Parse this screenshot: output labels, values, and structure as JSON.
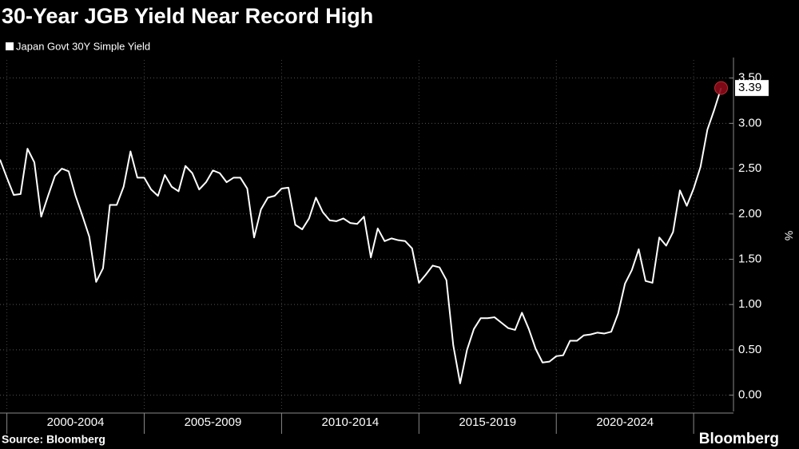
{
  "chart_data": {
    "type": "line",
    "title": "30-Year JGB Yield Near Record High",
    "y_axis_label": "%",
    "source": "Source: Bloomberg",
    "brand": "Bloomberg",
    "x": [
      1999.75,
      2000,
      2000.25,
      2000.5,
      2000.75,
      2001,
      2001.25,
      2001.5,
      2001.75,
      2002,
      2002.25,
      2002.5,
      2002.75,
      2003,
      2003.25,
      2003.5,
      2003.75,
      2004,
      2004.25,
      2004.5,
      2004.75,
      2005,
      2005.25,
      2005.5,
      2005.75,
      2006,
      2006.25,
      2006.5,
      2006.75,
      2007,
      2007.25,
      2007.5,
      2007.75,
      2008,
      2008.25,
      2008.5,
      2008.75,
      2009,
      2009.25,
      2009.5,
      2009.75,
      2010,
      2010.25,
      2010.5,
      2010.75,
      2011,
      2011.25,
      2011.5,
      2011.75,
      2012,
      2012.25,
      2012.5,
      2012.75,
      2013,
      2013.25,
      2013.5,
      2013.75,
      2014,
      2014.25,
      2014.5,
      2014.75,
      2015,
      2015.25,
      2015.5,
      2015.75,
      2016,
      2016.25,
      2016.5,
      2016.75,
      2017,
      2017.25,
      2017.5,
      2017.75,
      2018,
      2018.25,
      2018.5,
      2018.75,
      2019,
      2019.25,
      2019.5,
      2019.75,
      2020,
      2020.25,
      2020.5,
      2020.75,
      2021,
      2021.25,
      2021.5,
      2021.75,
      2022,
      2022.25,
      2022.5,
      2022.75,
      2023,
      2023.25,
      2023.5,
      2023.75,
      2024,
      2024.25,
      2024.5,
      2024.75,
      2025,
      2025.25,
      2025.5,
      2025.75,
      2026
    ],
    "series": [
      {
        "name": "Japan Govt 30Y Simple Yield",
        "color": "#ffffff",
        "values": [
          2.6,
          2.4,
          2.21,
          2.22,
          2.72,
          2.57,
          1.97,
          2.2,
          2.42,
          2.5,
          2.47,
          2.2,
          1.98,
          1.75,
          1.25,
          1.4,
          2.1,
          2.1,
          2.3,
          2.69,
          2.4,
          2.4,
          2.27,
          2.2,
          2.43,
          2.3,
          2.25,
          2.53,
          2.45,
          2.27,
          2.35,
          2.48,
          2.45,
          2.35,
          2.4,
          2.4,
          2.28,
          1.74,
          2.05,
          2.18,
          2.2,
          2.28,
          2.29,
          1.88,
          1.83,
          1.95,
          2.18,
          2.02,
          1.93,
          1.92,
          1.95,
          1.9,
          1.89,
          1.97,
          1.52,
          1.84,
          1.7,
          1.73,
          1.71,
          1.7,
          1.62,
          1.24,
          1.33,
          1.43,
          1.41,
          1.27,
          0.55,
          0.13,
          0.5,
          0.73,
          0.85,
          0.85,
          0.86,
          0.8,
          0.74,
          0.72,
          0.91,
          0.73,
          0.51,
          0.36,
          0.37,
          0.43,
          0.44,
          0.6,
          0.6,
          0.66,
          0.67,
          0.69,
          0.68,
          0.7,
          0.9,
          1.23,
          1.38,
          1.61,
          1.26,
          1.24,
          1.74,
          1.65,
          1.8,
          2.26,
          2.09,
          2.28,
          2.52,
          2.93,
          3.15,
          3.39
        ]
      }
    ],
    "last_value_label": "3.39",
    "marker_color": "#8b0a1a",
    "xlim": [
      1999.75,
      2026.45
    ],
    "xticks": [
      2000,
      2005,
      2010,
      2015,
      2020,
      2025
    ],
    "xtick_labels": [
      "2000-2004",
      "2005-2009",
      "2010-2014",
      "2015-2019",
      "2020-2024"
    ],
    "ylim": [
      -0.18,
      3.7
    ],
    "yticks": [
      {
        "value": 0,
        "label": "0.00"
      },
      {
        "value": 0.5,
        "label": "0.50"
      },
      {
        "value": 1,
        "label": "1.00"
      },
      {
        "value": 1.5,
        "label": "1.50"
      },
      {
        "value": 2,
        "label": "2.00"
      },
      {
        "value": 2.5,
        "label": "2.50"
      },
      {
        "value": 3,
        "label": "3.00"
      },
      {
        "value": 3.5,
        "label": "3.50"
      }
    ],
    "grid": true
  }
}
